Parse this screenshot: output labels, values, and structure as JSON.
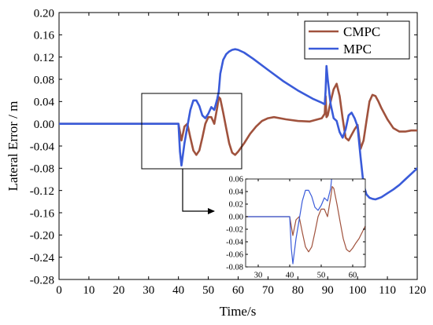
{
  "chart_data": [
    {
      "type": "line",
      "title": "",
      "xlabel": "Time/s",
      "ylabel": "Lateral Error / m",
      "xlim": [
        0,
        120
      ],
      "ylim": [
        -0.28,
        0.2
      ],
      "xticks": [
        "0",
        "10",
        "20",
        "30",
        "40",
        "50",
        "60",
        "70",
        "80",
        "90",
        "100",
        "110",
        "120"
      ],
      "yticks": [
        "0.20",
        "0.16",
        "0.12",
        "0.08",
        "0.04",
        "0.00",
        "-0.04",
        "-0.08",
        "-0.12",
        "-0.16",
        "-0.20",
        "-0.24",
        "-0.28"
      ],
      "grid": false,
      "legend_position": "top-right",
      "series": [
        {
          "name": "CMPC",
          "color": "#a0523d",
          "x": [
            0,
            40,
            41,
            42,
            43,
            44,
            45,
            46,
            47,
            48,
            49,
            50,
            51,
            52,
            53,
            53.5,
            54,
            55,
            56,
            57,
            58,
            59,
            60,
            62,
            64,
            66,
            68,
            70,
            72,
            76,
            80,
            84,
            88,
            89,
            89.3,
            89.6,
            90,
            91,
            92,
            93,
            94,
            95,
            96,
            97,
            98,
            99,
            100,
            101,
            102,
            103,
            104,
            105,
            106,
            107,
            108,
            110,
            112,
            114,
            116,
            118,
            120
          ],
          "y": [
            0,
            0,
            -0.03,
            -0.005,
            0.0,
            -0.025,
            -0.048,
            -0.056,
            -0.048,
            -0.025,
            0.0,
            0.012,
            0.012,
            0.0,
            0.03,
            0.048,
            0.045,
            0.02,
            -0.008,
            -0.035,
            -0.052,
            -0.056,
            -0.05,
            -0.035,
            -0.018,
            -0.005,
            0.005,
            0.01,
            0.012,
            0.008,
            0.005,
            0.004,
            0.01,
            0.018,
            0.05,
            0.012,
            0.015,
            0.04,
            0.062,
            0.072,
            0.05,
            0.01,
            -0.025,
            -0.03,
            -0.02,
            -0.01,
            -0.002,
            -0.045,
            -0.03,
            0.005,
            0.04,
            0.052,
            0.05,
            0.04,
            0.028,
            0.008,
            -0.008,
            -0.014,
            -0.014,
            -0.012,
            -0.012
          ]
        },
        {
          "name": "MPC",
          "color": "#3a5bd9",
          "x": [
            0,
            40,
            40.5,
            41,
            42,
            43,
            44,
            45,
            46,
            47,
            48,
            49,
            50,
            51,
            52,
            53,
            53.5,
            54,
            55,
            56,
            57,
            58,
            59,
            60,
            62,
            65,
            70,
            75,
            80,
            85,
            88,
            89,
            89.3,
            89.6,
            90,
            91,
            92,
            93,
            94,
            95,
            96,
            97,
            98,
            99,
            100,
            101,
            102,
            103,
            104,
            105,
            106,
            107,
            108,
            110,
            112,
            114,
            116,
            118,
            120
          ],
          "y": [
            0,
            0,
            -0.05,
            -0.075,
            -0.035,
            -0.005,
            0.025,
            0.042,
            0.042,
            0.032,
            0.015,
            0.01,
            0.018,
            0.03,
            0.025,
            0.045,
            0.058,
            0.09,
            0.115,
            0.125,
            0.13,
            0.133,
            0.134,
            0.133,
            0.128,
            0.117,
            0.097,
            0.077,
            0.06,
            0.045,
            0.038,
            0.035,
            0.06,
            0.104,
            0.08,
            0.035,
            0.01,
            0.005,
            -0.015,
            -0.025,
            -0.01,
            0.015,
            0.02,
            0.01,
            -0.005,
            -0.06,
            -0.11,
            -0.127,
            -0.133,
            -0.135,
            -0.136,
            -0.134,
            -0.132,
            -0.125,
            -0.118,
            -0.11,
            -0.1,
            -0.09,
            -0.08
          ]
        }
      ]
    },
    {
      "type": "line",
      "title": "",
      "xlabel": "",
      "ylabel": "",
      "xlim": [
        26,
        64
      ],
      "ylim": [
        -0.08,
        0.06
      ],
      "xticks": [
        "30",
        "40",
        "50",
        "60"
      ],
      "yticks": [
        "0.06",
        "0.04",
        "0.02",
        "0.00",
        "-0.02",
        "-0.04",
        "-0.06",
        "-0.08"
      ],
      "grid": false,
      "series": [
        {
          "color": "#a0523d",
          "x": [
            26,
            40,
            41,
            42,
            43,
            44,
            45,
            46,
            47,
            48,
            49,
            50,
            51,
            52,
            53,
            53.5,
            54,
            55,
            56,
            57,
            58,
            59,
            60,
            61,
            62,
            63,
            64
          ],
          "y": [
            0,
            0,
            -0.03,
            -0.005,
            0.0,
            -0.025,
            -0.048,
            -0.056,
            -0.048,
            -0.025,
            0.0,
            0.012,
            0.012,
            0.0,
            0.03,
            0.048,
            0.045,
            0.02,
            -0.008,
            -0.035,
            -0.052,
            -0.056,
            -0.05,
            -0.042,
            -0.035,
            -0.025,
            -0.015
          ]
        },
        {
          "color": "#3a5bd9",
          "x": [
            26,
            40,
            40.5,
            41,
            42,
            43,
            44,
            45,
            46,
            47,
            48,
            49,
            50,
            51,
            52,
            53,
            53.3
          ],
          "y": [
            0,
            0,
            -0.05,
            -0.075,
            -0.035,
            -0.005,
            0.025,
            0.042,
            0.042,
            0.032,
            0.015,
            0.01,
            0.018,
            0.03,
            0.025,
            0.045,
            0.06
          ]
        }
      ]
    }
  ]
}
